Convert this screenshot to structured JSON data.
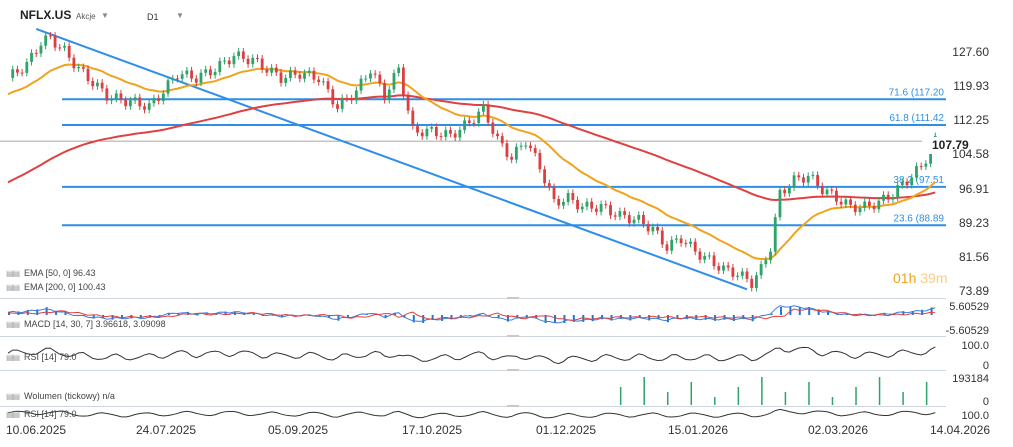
{
  "header": {
    "symbol": "NFLX.US",
    "type": "Akcje",
    "timeframe": "D1"
  },
  "legend": {
    "ema50": "EMA [50, 0] 96.43",
    "ema200": "EMA [200, 0] 100.43",
    "macd": "MACD [14, 30, 7] 3.96618, 3.09098",
    "rsi": "RSI [14] 79.0",
    "volume": "Wolumen (tickowy) n/a",
    "rsi2": "RSI [14] 79.0"
  },
  "timer": {
    "hours": "01h",
    "minutes": "39m"
  },
  "last_price": "107.79",
  "colors": {
    "ema50": "#f0a31b",
    "ema200": "#e04040",
    "fib": "#2e8ee8",
    "bull": "#2ea36a",
    "bear": "#d94040",
    "macd_hist": "#1f77d0"
  },
  "chart_data": {
    "type": "candlestick",
    "title": "NFLX.US",
    "x_ticks": [
      "10.06.2025",
      "24.07.2025",
      "05.09.2025",
      "17.10.2025",
      "01.12.2025",
      "15.01.2026",
      "02.03.2026",
      "14.04.2026"
    ],
    "y_ticks": [
      "127.60",
      "119.93",
      "112.25",
      "104.58",
      "96.91",
      "89.23",
      "81.56",
      "73.89"
    ],
    "ylim": [
      73.89,
      133.5
    ],
    "fib_levels": [
      {
        "label": "71.6 (117.20",
        "value": 117.2
      },
      {
        "label": "61.8 (111.42",
        "value": 111.42
      },
      {
        "label": "38.2 (97.51",
        "value": 97.51
      },
      {
        "label": "23.6 (88.89",
        "value": 88.89
      }
    ],
    "current_price": 107.79,
    "ema50_last": 96.43,
    "ema200_last": 100.43,
    "close_trend": [
      {
        "x": 0,
        "c": 122
      },
      {
        "x": 4,
        "c": 125
      },
      {
        "x": 7,
        "c": 130
      },
      {
        "x": 9,
        "c": 131
      },
      {
        "x": 12,
        "c": 128
      },
      {
        "x": 15,
        "c": 124
      },
      {
        "x": 18,
        "c": 121
      },
      {
        "x": 21,
        "c": 118
      },
      {
        "x": 24,
        "c": 117
      },
      {
        "x": 27,
        "c": 116.5
      },
      {
        "x": 30,
        "c": 115.5
      },
      {
        "x": 33,
        "c": 119
      },
      {
        "x": 36,
        "c": 123
      },
      {
        "x": 40,
        "c": 122
      },
      {
        "x": 44,
        "c": 124
      },
      {
        "x": 48,
        "c": 127
      },
      {
        "x": 52,
        "c": 126
      },
      {
        "x": 55,
        "c": 124
      },
      {
        "x": 58,
        "c": 122
      },
      {
        "x": 62,
        "c": 123
      },
      {
        "x": 66,
        "c": 122
      },
      {
        "x": 70,
        "c": 115.5
      },
      {
        "x": 74,
        "c": 119
      },
      {
        "x": 77,
        "c": 124
      },
      {
        "x": 80,
        "c": 118
      },
      {
        "x": 83,
        "c": 124
      },
      {
        "x": 86,
        "c": 110
      },
      {
        "x": 90,
        "c": 110
      },
      {
        "x": 94,
        "c": 109
      },
      {
        "x": 98,
        "c": 112
      },
      {
        "x": 101,
        "c": 115
      },
      {
        "x": 104,
        "c": 108
      },
      {
        "x": 107,
        "c": 104
      },
      {
        "x": 110,
        "c": 108
      },
      {
        "x": 113,
        "c": 102
      },
      {
        "x": 116,
        "c": 94
      },
      {
        "x": 119,
        "c": 95
      },
      {
        "x": 122,
        "c": 93
      },
      {
        "x": 126,
        "c": 93
      },
      {
        "x": 130,
        "c": 91
      },
      {
        "x": 134,
        "c": 90
      },
      {
        "x": 137,
        "c": 88
      },
      {
        "x": 140,
        "c": 84
      },
      {
        "x": 143,
        "c": 86
      },
      {
        "x": 146,
        "c": 83
      },
      {
        "x": 149,
        "c": 81
      },
      {
        "x": 152,
        "c": 79
      },
      {
        "x": 155,
        "c": 78
      },
      {
        "x": 158,
        "c": 76
      },
      {
        "x": 160,
        "c": 79
      },
      {
        "x": 162,
        "c": 84
      },
      {
        "x": 164,
        "c": 96
      },
      {
        "x": 167,
        "c": 99
      },
      {
        "x": 170,
        "c": 100
      },
      {
        "x": 173,
        "c": 97
      },
      {
        "x": 176,
        "c": 95
      },
      {
        "x": 179,
        "c": 93
      },
      {
        "x": 182,
        "c": 93
      },
      {
        "x": 185,
        "c": 94
      },
      {
        "x": 188,
        "c": 96
      },
      {
        "x": 191,
        "c": 99
      },
      {
        "x": 194,
        "c": 102
      },
      {
        "x": 197,
        "c": 107.79
      }
    ]
  }
}
